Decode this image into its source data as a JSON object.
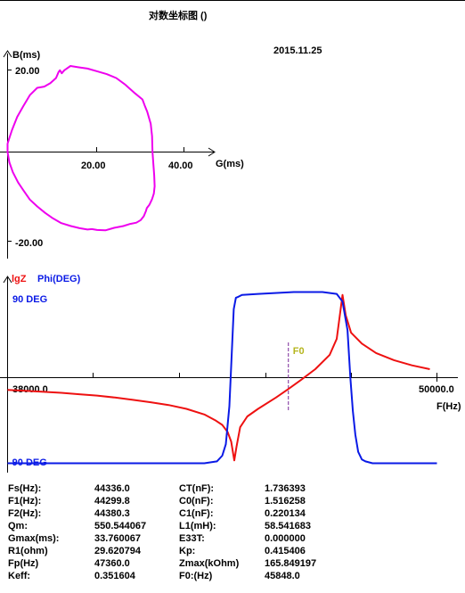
{
  "header": {
    "title": "对数坐标图 ()",
    "date": "2015.11.25"
  },
  "chart_data": [
    {
      "type": "scatter",
      "title": "",
      "xlabel": "G(ms)",
      "ylabel": "B(ms)",
      "xlim": [
        0,
        44
      ],
      "ylim": [
        -23,
        23
      ],
      "x_ticks": [
        20.0,
        40.0
      ],
      "x_tick_labels": [
        "20.00",
        "40.00"
      ],
      "y_ticks": [
        20.0,
        -20.0
      ],
      "y_tick_labels": [
        "20.00",
        "-20.00"
      ],
      "grid": false,
      "color": "#ee00ee",
      "series": [
        {
          "x": [
            0.0,
            1.0,
            2.2,
            3.6,
            5.1,
            6.8,
            8.4,
            9.8,
            11.1,
            11.7,
            12.0,
            12.4,
            13.0,
            14.4,
            16.3,
            18.3,
            20.4,
            22.7,
            24.9,
            27.0,
            29.2,
            30.9,
            31.4,
            32.0,
            32.8,
            33.1,
            33.2,
            33.4,
            33.6,
            33.7,
            33.5,
            33.1,
            32.5,
            31.9,
            31.7,
            31.2,
            30.5,
            29.5,
            28.1,
            26.5,
            24.4,
            22.4,
            20.5,
            19.3,
            18.3,
            16.5,
            14.5,
            12.3,
            10.4,
            8.6,
            6.8,
            5.1,
            3.6,
            2.4,
            1.2,
            0.4,
            0.0,
            0.0
          ],
          "y": [
            2.0,
            5.1,
            8.2,
            10.7,
            13.3,
            15.0,
            15.3,
            16.1,
            17.3,
            18.7,
            19.1,
            18.4,
            19.1,
            20.1,
            19.8,
            19.5,
            18.9,
            18.2,
            17.3,
            15.7,
            13.7,
            12.3,
            10.9,
            9.4,
            6.6,
            3.7,
            0.0,
            -2.9,
            -5.4,
            -8.0,
            -9.7,
            -11.0,
            -12.3,
            -13.1,
            -13.8,
            -15.0,
            -15.9,
            -16.5,
            -16.8,
            -17.3,
            -17.7,
            -18.3,
            -18.2,
            -18.0,
            -18.1,
            -17.8,
            -17.3,
            -16.6,
            -15.5,
            -14.2,
            -12.7,
            -11.1,
            -8.9,
            -7.1,
            -4.7,
            -2.4,
            0.0,
            2.0
          ]
        }
      ]
    },
    {
      "type": "line",
      "title": "",
      "xlabel": "F(Hz)",
      "labels": [
        "lgZ",
        "Phi(DEG)"
      ],
      "xlim": [
        38000.0,
        50000.0
      ],
      "x_tick_labels": [
        "38000.0",
        "50000.0"
      ],
      "phase_labels": [
        "90 DEG",
        "-90 DEG"
      ],
      "phase_range": [
        -90,
        90
      ],
      "marker": {
        "label": "F0",
        "x": 45848.0
      },
      "series": [
        {
          "name": "lgZ",
          "color": "#ee1111",
          "x": [
            38000,
            38500,
            39000,
            39500,
            40000,
            40500,
            41000,
            41500,
            42000,
            42500,
            43000,
            43500,
            43800,
            44000,
            44150,
            44250,
            44336,
            44400,
            44500,
            44700,
            45000,
            45500,
            45850,
            46200,
            46600,
            47000,
            47200,
            47360,
            47450,
            47600,
            47900,
            48300,
            48800,
            49300,
            49800
          ],
          "y": [
            -0.26,
            -0.28,
            -0.3,
            -0.32,
            -0.35,
            -0.38,
            -0.42,
            -0.47,
            -0.52,
            -0.58,
            -0.66,
            -0.78,
            -0.9,
            -1.0,
            -1.15,
            -1.35,
            -1.75,
            -1.45,
            -1.05,
            -0.82,
            -0.66,
            -0.42,
            -0.24,
            -0.05,
            0.18,
            0.48,
            0.82,
            1.75,
            1.32,
            0.95,
            0.72,
            0.52,
            0.37,
            0.26,
            0.18
          ]
        },
        {
          "name": "Phi(DEG)",
          "color": "#0a1ae6",
          "x": [
            38000,
            43000,
            43500,
            43850,
            44000,
            44100,
            44200,
            44260,
            44320,
            44380,
            44450,
            44550,
            45000,
            46000,
            46800,
            47200,
            47360,
            47500,
            47580,
            47650,
            47720,
            47800,
            47900,
            48000,
            48200,
            48600,
            50000
          ],
          "y": [
            -90,
            -90,
            -90,
            -88,
            -82,
            -70,
            -30,
            20,
            72,
            84,
            85,
            87,
            88,
            90,
            90,
            88,
            80,
            50,
            0,
            -35,
            -60,
            -78,
            -86,
            -88,
            -90,
            -90,
            -90
          ]
        }
      ]
    }
  ],
  "params": [
    [
      "Fs(Hz):",
      "44336.0",
      "CT(nF):",
      "1.736393"
    ],
    [
      "F1(Hz):",
      "44299.8",
      "C0(nF):",
      "1.516258"
    ],
    [
      "F2(Hz):",
      "44380.3",
      "C1(nF):",
      "0.220134"
    ],
    [
      "Qm:",
      "550.544067",
      "L1(mH):",
      "58.541683"
    ],
    [
      "Gmax(ms):",
      "33.760067",
      "E33T:",
      "0.000000"
    ],
    [
      "R1(ohm)",
      "29.620794",
      "Kp:",
      "0.415406"
    ],
    [
      "Fp(Hz)",
      "47360.0",
      "Zmax(kOhm)",
      "165.849197"
    ],
    [
      "Keff:",
      "0.351604",
      "F0:(Hz)",
      "45848.0"
    ]
  ]
}
